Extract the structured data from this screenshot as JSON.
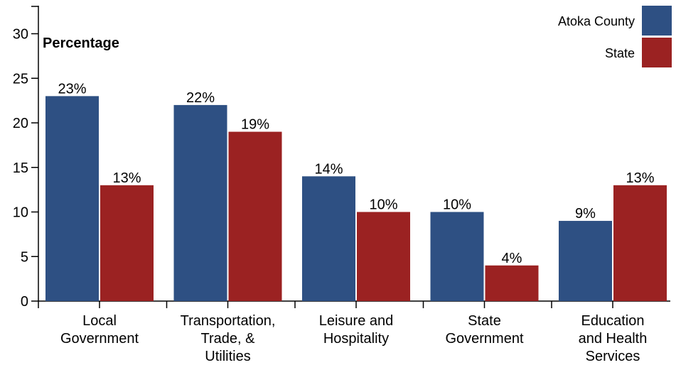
{
  "chart_data": {
    "type": "bar",
    "ylabel": "Percentage",
    "xlabel": "",
    "ylim": [
      0,
      32
    ],
    "yticks": [
      0,
      5,
      10,
      15,
      20,
      25,
      30
    ],
    "categories": [
      [
        "Local",
        "Government"
      ],
      [
        "Transportation,",
        "Trade, &",
        "Utilities"
      ],
      [
        "Leisure and",
        "Hospitality"
      ],
      [
        "State",
        "Government"
      ],
      [
        "Education",
        "and Health",
        "Services"
      ]
    ],
    "series": [
      {
        "name": "Atoka County",
        "color": "#2e5083",
        "values": [
          23,
          22,
          14,
          10,
          9
        ],
        "labels": [
          "23%",
          "22%",
          "14%",
          "10%",
          "9%"
        ]
      },
      {
        "name": "State",
        "color": "#9b2222",
        "values": [
          13,
          19,
          10,
          4,
          13
        ],
        "labels": [
          "13%",
          "19%",
          "10%",
          "4%",
          "13%"
        ]
      }
    ],
    "legend_position": "top-right",
    "grid": false
  }
}
